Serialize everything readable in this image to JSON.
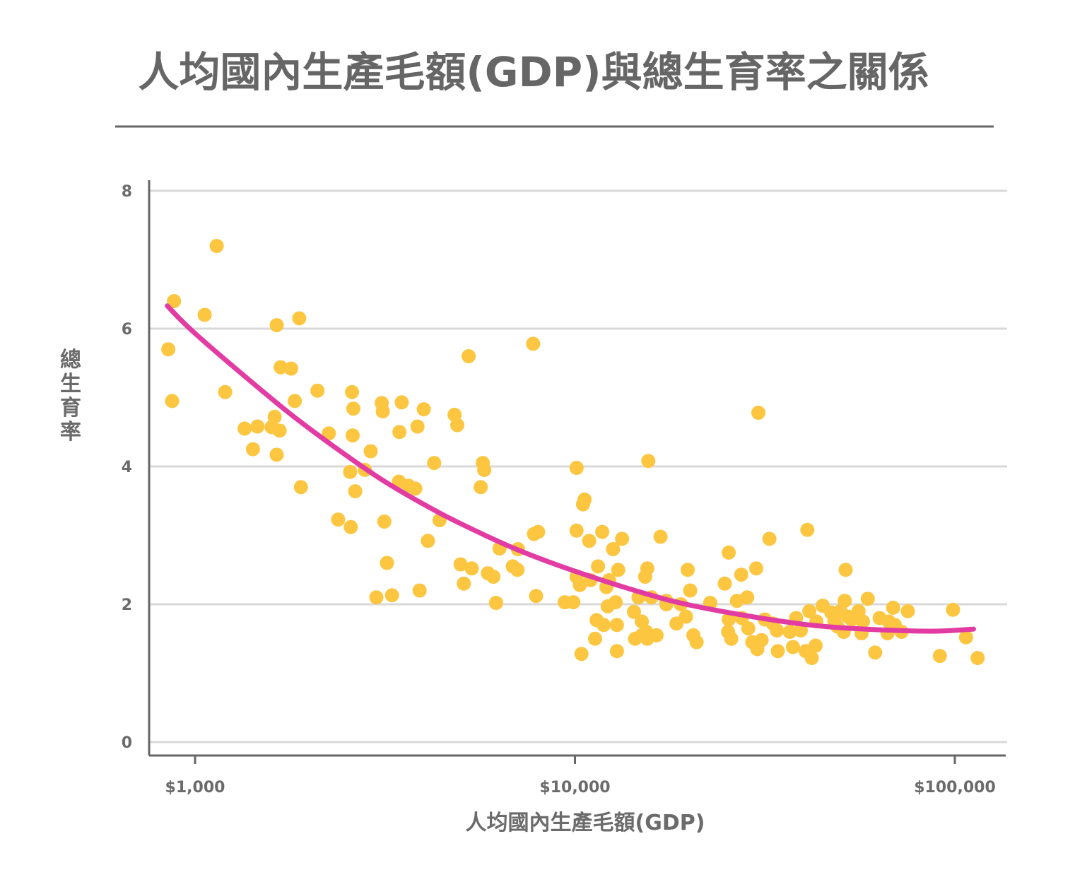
{
  "chart_data": {
    "type": "scatter",
    "title": "人均國內生產毛額(GDP)與總生育率之關係",
    "xlabel": "人均國內生產毛額(GDP)",
    "ylabel": "總生育率",
    "x_scale": "log",
    "xlim": [
      800,
      115000
    ],
    "ylim": [
      0,
      8
    ],
    "x_ticks": [
      {
        "value": 1000,
        "label": "$1,000"
      },
      {
        "value": 10000,
        "label": "$10,000"
      },
      {
        "value": 100000,
        "label": "$100,000"
      }
    ],
    "y_ticks": [
      {
        "value": 0,
        "label": "0"
      },
      {
        "value": 2,
        "label": "2"
      },
      {
        "value": 4,
        "label": "4"
      },
      {
        "value": 6,
        "label": "6"
      },
      {
        "value": 8,
        "label": "8"
      }
    ],
    "grid": true,
    "colors": {
      "points": "#fcc640",
      "trend": "#e23ca3",
      "axis": "#666666",
      "grid": "#d9d9d9",
      "text": "#6b6b6b"
    },
    "points": [
      [
        1140,
        7.2
      ],
      [
        880,
        6.4
      ],
      [
        850,
        5.7
      ],
      [
        870,
        4.95
      ],
      [
        1060,
        6.2
      ],
      [
        1200,
        5.08
      ],
      [
        1350,
        4.55
      ],
      [
        1460,
        4.58
      ],
      [
        1420,
        4.25
      ],
      [
        1590,
        4.57
      ],
      [
        1640,
        6.05
      ],
      [
        1680,
        5.44
      ],
      [
        1790,
        5.42
      ],
      [
        1830,
        4.95
      ],
      [
        1880,
        6.15
      ],
      [
        1900,
        3.7
      ],
      [
        1620,
        4.72
      ],
      [
        1670,
        4.52
      ],
      [
        1640,
        4.17
      ],
      [
        2100,
        5.1
      ],
      [
        2250,
        4.48
      ],
      [
        2380,
        3.23
      ],
      [
        2560,
        3.92
      ],
      [
        2590,
        5.08
      ],
      [
        2610,
        4.84
      ],
      [
        2600,
        4.45
      ],
      [
        2570,
        3.12
      ],
      [
        2640,
        3.64
      ],
      [
        2800,
        3.95
      ],
      [
        2900,
        4.22
      ],
      [
        3000,
        2.1
      ],
      [
        3100,
        4.92
      ],
      [
        3120,
        4.8
      ],
      [
        3150,
        3.2
      ],
      [
        3200,
        2.6
      ],
      [
        3300,
        2.13
      ],
      [
        3440,
        3.78
      ],
      [
        3500,
        4.93
      ],
      [
        3450,
        4.5
      ],
      [
        3650,
        3.72
      ],
      [
        3800,
        3.68
      ],
      [
        3850,
        4.58
      ],
      [
        3900,
        2.2
      ],
      [
        4000,
        4.83
      ],
      [
        4100,
        2.92
      ],
      [
        4260,
        4.05
      ],
      [
        4400,
        3.22
      ],
      [
        4820,
        4.75
      ],
      [
        4900,
        4.6
      ],
      [
        5000,
        2.58
      ],
      [
        5100,
        2.3
      ],
      [
        5250,
        5.6
      ],
      [
        5350,
        2.52
      ],
      [
        5650,
        3.7
      ],
      [
        5720,
        4.05
      ],
      [
        5770,
        3.95
      ],
      [
        5900,
        2.45
      ],
      [
        6100,
        2.4
      ],
      [
        6200,
        2.02
      ],
      [
        6330,
        2.81
      ],
      [
        6860,
        2.55
      ],
      [
        7060,
        2.5
      ],
      [
        7080,
        2.8
      ],
      [
        7760,
        5.78
      ],
      [
        7800,
        3.02
      ],
      [
        8000,
        3.05
      ],
      [
        7900,
        2.12
      ],
      [
        9400,
        2.03
      ],
      [
        9900,
        2.03
      ],
      [
        10100,
        3.98
      ],
      [
        10100,
        3.07
      ],
      [
        10100,
        2.4
      ],
      [
        10300,
        2.28
      ],
      [
        10400,
        1.28
      ],
      [
        10600,
        3.52
      ],
      [
        10500,
        3.45
      ],
      [
        10900,
        2.92
      ],
      [
        11000,
        2.35
      ],
      [
        11300,
        1.5
      ],
      [
        11400,
        1.77
      ],
      [
        11500,
        2.55
      ],
      [
        11800,
        3.05
      ],
      [
        11900,
        1.7
      ],
      [
        12100,
        2.25
      ],
      [
        12200,
        1.97
      ],
      [
        12300,
        2.35
      ],
      [
        12600,
        2.8
      ],
      [
        12800,
        2.03
      ],
      [
        12900,
        1.7
      ],
      [
        13000,
        2.5
      ],
      [
        12900,
        1.32
      ],
      [
        13300,
        2.95
      ],
      [
        14400,
        1.5
      ],
      [
        14300,
        1.89
      ],
      [
        14700,
        2.1
      ],
      [
        15000,
        1.55
      ],
      [
        15000,
        1.75
      ],
      [
        15300,
        2.4
      ],
      [
        15500,
        2.52
      ],
      [
        15500,
        1.5
      ],
      [
        15600,
        4.08
      ],
      [
        15400,
        1.6
      ],
      [
        15900,
        2.1
      ],
      [
        16400,
        1.55
      ],
      [
        16800,
        2.98
      ],
      [
        17400,
        2.05
      ],
      [
        17400,
        2.0
      ],
      [
        18500,
        1.72
      ],
      [
        19000,
        2.0
      ],
      [
        19600,
        1.82
      ],
      [
        19800,
        2.5
      ],
      [
        20100,
        2.2
      ],
      [
        20500,
        1.55
      ],
      [
        20900,
        1.45
      ],
      [
        22700,
        2.02
      ],
      [
        24800,
        2.3
      ],
      [
        25300,
        1.6
      ],
      [
        25400,
        2.75
      ],
      [
        25400,
        1.78
      ],
      [
        25800,
        1.5
      ],
      [
        26700,
        2.05
      ],
      [
        27400,
        2.43
      ],
      [
        27500,
        1.8
      ],
      [
        28400,
        2.1
      ],
      [
        28600,
        1.65
      ],
      [
        29300,
        1.45
      ],
      [
        30200,
        1.35
      ],
      [
        30000,
        2.52
      ],
      [
        30400,
        4.78
      ],
      [
        31000,
        1.48
      ],
      [
        31600,
        1.78
      ],
      [
        32500,
        2.95
      ],
      [
        33200,
        1.72
      ],
      [
        34000,
        1.62
      ],
      [
        34200,
        1.32
      ],
      [
        36800,
        1.6
      ],
      [
        37500,
        1.38
      ],
      [
        38200,
        1.8
      ],
      [
        39300,
        1.62
      ],
      [
        40500,
        1.32
      ],
      [
        40900,
        3.08
      ],
      [
        41400,
        1.9
      ],
      [
        42000,
        1.22
      ],
      [
        43000,
        1.4
      ],
      [
        43200,
        1.75
      ],
      [
        44900,
        1.98
      ],
      [
        47300,
        1.88
      ],
      [
        48200,
        1.75
      ],
      [
        49000,
        1.68
      ],
      [
        50000,
        1.9
      ],
      [
        51000,
        1.6
      ],
      [
        51300,
        2.05
      ],
      [
        51600,
        2.5
      ],
      [
        52300,
        1.82
      ],
      [
        53500,
        1.78
      ],
      [
        54900,
        1.82
      ],
      [
        55800,
        1.9
      ],
      [
        56800,
        1.58
      ],
      [
        57300,
        1.75
      ],
      [
        59000,
        2.08
      ],
      [
        61700,
        1.3
      ],
      [
        63400,
        1.8
      ],
      [
        66500,
        1.58
      ],
      [
        67000,
        1.75
      ],
      [
        68800,
        1.95
      ],
      [
        69500,
        1.7
      ],
      [
        72400,
        1.6
      ],
      [
        75200,
        1.9
      ],
      [
        91300,
        1.25
      ],
      [
        98900,
        1.92
      ],
      [
        107000,
        1.52
      ],
      [
        114800,
        1.22
      ]
    ],
    "trend": [
      [
        845,
        6.33
      ],
      [
        1000,
        5.93
      ],
      [
        1500,
        5.1
      ],
      [
        2000,
        4.55
      ],
      [
        3000,
        3.86
      ],
      [
        4000,
        3.45
      ],
      [
        5000,
        3.17
      ],
      [
        7000,
        2.8
      ],
      [
        10000,
        2.48
      ],
      [
        15000,
        2.17
      ],
      [
        20000,
        1.99
      ],
      [
        30000,
        1.81
      ],
      [
        40000,
        1.71
      ],
      [
        50000,
        1.66
      ],
      [
        70000,
        1.62
      ],
      [
        90000,
        1.61
      ],
      [
        112000,
        1.64
      ]
    ]
  }
}
